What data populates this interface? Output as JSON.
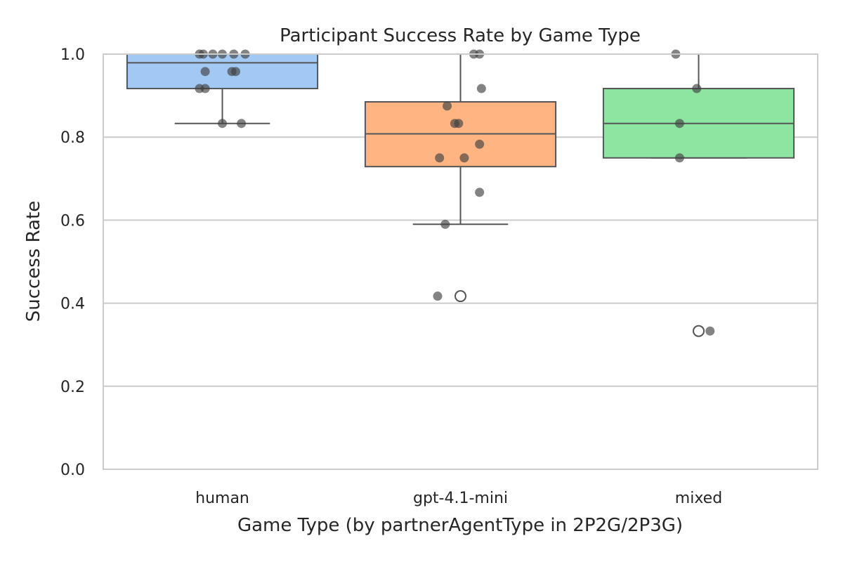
{
  "chart_data": {
    "type": "box",
    "title": "Participant Success Rate by Game Type",
    "xlabel": "Game Type (by partnerAgentType in 2P2G/2P3G)",
    "ylabel": "Success Rate",
    "ylim": [
      0.0,
      1.0
    ],
    "yticks": [
      "0.0",
      "0.2",
      "0.4",
      "0.6",
      "0.8",
      "1.0"
    ],
    "grid": "horizontal",
    "categories": [
      "human",
      "gpt-4.1-mini",
      "mixed"
    ],
    "colors": {
      "human": "#a1c9f4",
      "gpt-4.1-mini": "#ffb482",
      "mixed": "#8de5a1",
      "box_edge": "#555555",
      "points": "#404040"
    },
    "boxes": [
      {
        "category": "human",
        "whisker_low": 0.833,
        "q1": 0.917,
        "median": 0.979,
        "q3": 1.0,
        "whisker_high": 1.0,
        "outliers": [],
        "points": [
          {
            "jitter": -0.12,
            "y": 1.0
          },
          {
            "jitter": -0.1,
            "y": 1.0
          },
          {
            "jitter": -0.05,
            "y": 1.0
          },
          {
            "jitter": 0.0,
            "y": 1.0
          },
          {
            "jitter": 0.06,
            "y": 1.0
          },
          {
            "jitter": 0.12,
            "y": 1.0
          },
          {
            "jitter": -0.09,
            "y": 0.958
          },
          {
            "jitter": 0.05,
            "y": 0.958
          },
          {
            "jitter": 0.07,
            "y": 0.958
          },
          {
            "jitter": -0.12,
            "y": 0.917
          },
          {
            "jitter": -0.09,
            "y": 0.917
          },
          {
            "jitter": 0.0,
            "y": 0.833
          },
          {
            "jitter": 0.1,
            "y": 0.833
          }
        ]
      },
      {
        "category": "gpt-4.1-mini",
        "whisker_low": 0.59,
        "q1": 0.729,
        "median": 0.808,
        "q3": 0.885,
        "whisker_high": 1.0,
        "outliers": [
          0.417
        ],
        "points": [
          {
            "jitter": 0.07,
            "y": 1.0
          },
          {
            "jitter": 0.1,
            "y": 1.0
          },
          {
            "jitter": 0.11,
            "y": 0.917
          },
          {
            "jitter": -0.07,
            "y": 0.875
          },
          {
            "jitter": -0.03,
            "y": 0.833
          },
          {
            "jitter": -0.01,
            "y": 0.833
          },
          {
            "jitter": 0.1,
            "y": 0.783
          },
          {
            "jitter": -0.11,
            "y": 0.75
          },
          {
            "jitter": 0.02,
            "y": 0.75
          },
          {
            "jitter": 0.1,
            "y": 0.667
          },
          {
            "jitter": -0.08,
            "y": 0.59
          },
          {
            "jitter": -0.12,
            "y": 0.417
          }
        ]
      },
      {
        "category": "mixed",
        "whisker_low": 0.75,
        "q1": 0.75,
        "median": 0.833,
        "q3": 0.917,
        "whisker_high": 1.0,
        "outliers": [
          0.333
        ],
        "points": [
          {
            "jitter": -0.12,
            "y": 1.0
          },
          {
            "jitter": -0.01,
            "y": 0.917
          },
          {
            "jitter": -0.1,
            "y": 0.833
          },
          {
            "jitter": -0.1,
            "y": 0.75
          },
          {
            "jitter": 0.06,
            "y": 0.333
          }
        ]
      }
    ]
  }
}
